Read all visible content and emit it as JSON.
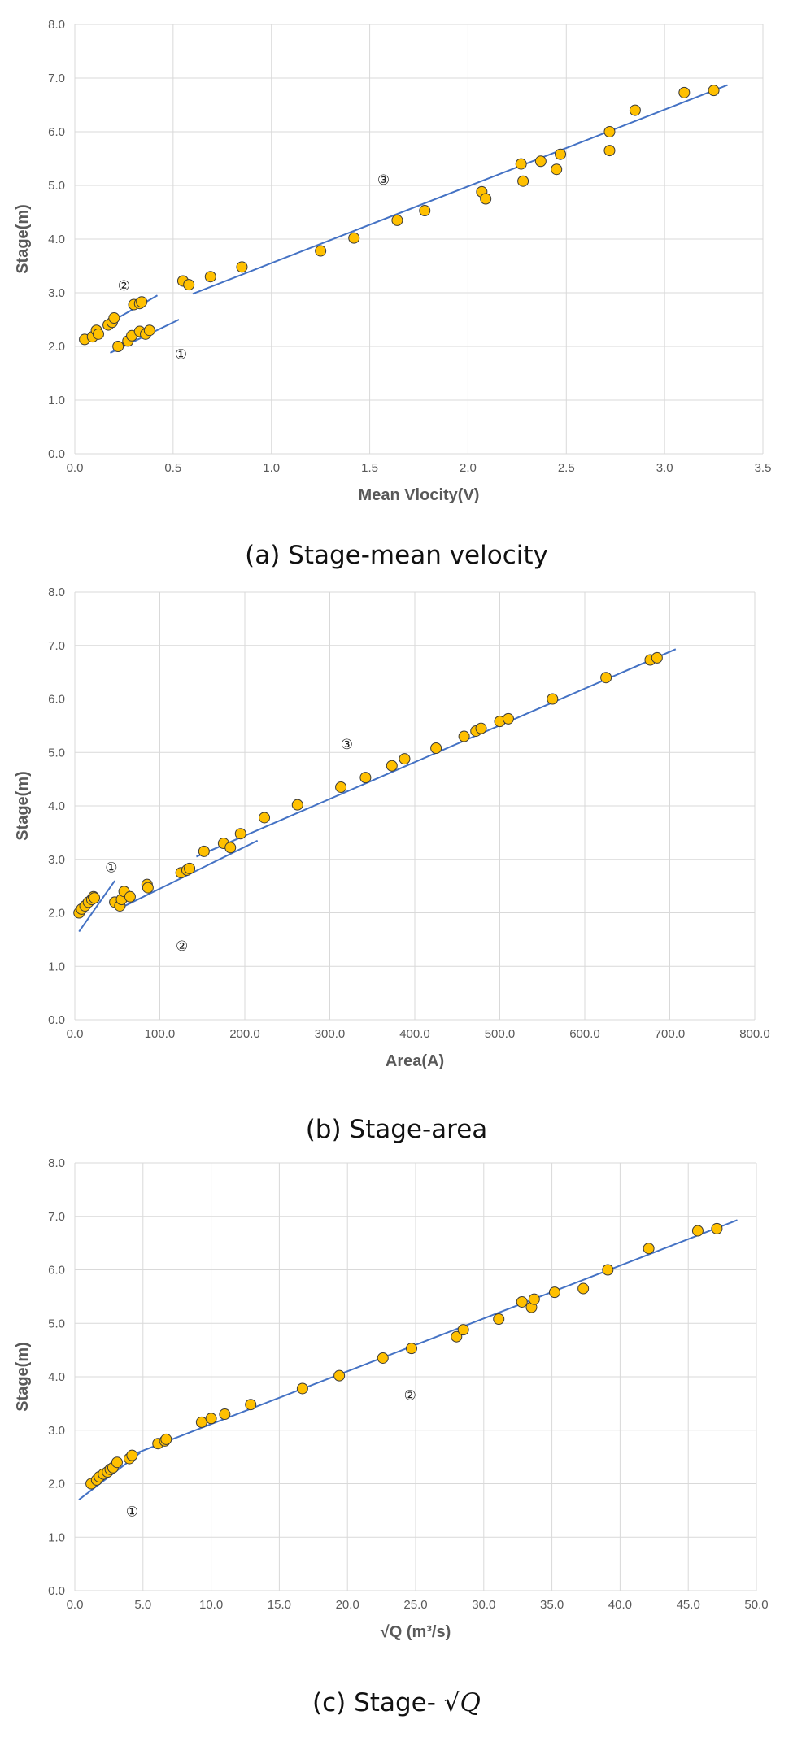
{
  "chart_data": [
    {
      "type": "scatter",
      "caption": "(a) Stage-mean velocity",
      "xlabel": "Mean Vlocity(V)",
      "ylabel": "Stage(m)",
      "xlim": [
        0,
        3.5
      ],
      "ylim": [
        0,
        8
      ],
      "xticks": [
        0,
        0.5,
        1.0,
        1.5,
        2.0,
        2.5,
        3.0,
        3.5
      ],
      "xtick_labels": [
        "0.0",
        "0.5",
        "1.0",
        "1.5",
        "2.0",
        "2.5",
        "3.0",
        "3.5"
      ],
      "yticks": [
        0,
        1,
        2,
        3,
        4,
        5,
        6,
        7,
        8
      ],
      "ytick_labels": [
        "0.0",
        "1.0",
        "2.0",
        "3.0",
        "4.0",
        "5.0",
        "6.0",
        "7.0",
        "8.0"
      ],
      "grid": true,
      "marker_color": "#FFC000",
      "line_color": "#4472C4",
      "points": [
        [
          0.05,
          2.13
        ],
        [
          0.09,
          2.18
        ],
        [
          0.11,
          2.3
        ],
        [
          0.12,
          2.23
        ],
        [
          0.17,
          2.4
        ],
        [
          0.19,
          2.45
        ],
        [
          0.2,
          2.53
        ],
        [
          0.22,
          2.0
        ],
        [
          0.27,
          2.1
        ],
        [
          0.29,
          2.2
        ],
        [
          0.3,
          2.78
        ],
        [
          0.33,
          2.28
        ],
        [
          0.33,
          2.8
        ],
        [
          0.34,
          2.83
        ],
        [
          0.36,
          2.23
        ],
        [
          0.38,
          2.3
        ],
        [
          0.55,
          3.22
        ],
        [
          0.58,
          3.15
        ],
        [
          0.69,
          3.3
        ],
        [
          0.85,
          3.48
        ],
        [
          1.25,
          3.78
        ],
        [
          1.42,
          4.02
        ],
        [
          1.64,
          4.35
        ],
        [
          1.78,
          4.53
        ],
        [
          2.07,
          4.88
        ],
        [
          2.09,
          4.75
        ],
        [
          2.27,
          5.4
        ],
        [
          2.28,
          5.08
        ],
        [
          2.37,
          5.45
        ],
        [
          2.45,
          5.3
        ],
        [
          2.47,
          5.58
        ],
        [
          2.72,
          6.0
        ],
        [
          2.72,
          5.65
        ],
        [
          2.85,
          6.4
        ],
        [
          3.1,
          6.73
        ],
        [
          3.25,
          6.77
        ]
      ],
      "fit_lines": [
        {
          "x": [
            0.18,
            0.53
          ],
          "y": [
            1.88,
            2.5
          ]
        },
        {
          "x": [
            0.18,
            0.42
          ],
          "y": [
            2.45,
            2.95
          ]
        },
        {
          "x": [
            0.6,
            3.32
          ],
          "y": [
            2.98,
            6.87
          ]
        }
      ],
      "annotations": [
        {
          "text": "①",
          "x": 0.54,
          "y": 1.87
        },
        {
          "text": "②",
          "x": 0.25,
          "y": 3.15
        },
        {
          "text": "③",
          "x": 1.57,
          "y": 5.12
        }
      ]
    },
    {
      "type": "scatter",
      "caption": "(b) Stage-area",
      "xlabel": "Area(A)",
      "ylabel": "Stage(m)",
      "xlim": [
        0,
        800
      ],
      "ylim": [
        0,
        8
      ],
      "xticks": [
        0,
        100,
        200,
        300,
        400,
        500,
        600,
        700,
        800
      ],
      "xtick_labels": [
        "0.0",
        "100.0",
        "200.0",
        "300.0",
        "400.0",
        "500.0",
        "600.0",
        "700.0",
        "800.0"
      ],
      "yticks": [
        0,
        1,
        2,
        3,
        4,
        5,
        6,
        7,
        8
      ],
      "ytick_labels": [
        "0.0",
        "1.0",
        "2.0",
        "3.0",
        "4.0",
        "5.0",
        "6.0",
        "7.0",
        "8.0"
      ],
      "grid": true,
      "marker_color": "#FFC000",
      "line_color": "#4472C4",
      "points": [
        [
          5,
          2.0
        ],
        [
          8,
          2.07
        ],
        [
          12,
          2.13
        ],
        [
          16,
          2.2
        ],
        [
          20,
          2.25
        ],
        [
          22,
          2.3
        ],
        [
          23,
          2.28
        ],
        [
          47,
          2.2
        ],
        [
          53,
          2.13
        ],
        [
          55,
          2.25
        ],
        [
          58,
          2.4
        ],
        [
          65,
          2.3
        ],
        [
          85,
          2.53
        ],
        [
          86,
          2.47
        ],
        [
          125,
          2.75
        ],
        [
          132,
          2.8
        ],
        [
          135,
          2.83
        ],
        [
          152,
          3.15
        ],
        [
          175,
          3.3
        ],
        [
          183,
          3.22
        ],
        [
          195,
          3.48
        ],
        [
          223,
          3.78
        ],
        [
          262,
          4.02
        ],
        [
          313,
          4.35
        ],
        [
          342,
          4.53
        ],
        [
          373,
          4.75
        ],
        [
          388,
          4.88
        ],
        [
          425,
          5.08
        ],
        [
          458,
          5.3
        ],
        [
          472,
          5.4
        ],
        [
          478,
          5.45
        ],
        [
          500,
          5.58
        ],
        [
          510,
          5.63
        ],
        [
          562,
          6.0
        ],
        [
          625,
          6.4
        ],
        [
          677,
          6.73
        ],
        [
          685,
          6.77
        ]
      ],
      "fit_lines": [
        {
          "x": [
            5,
            47
          ],
          "y": [
            1.65,
            2.6
          ]
        },
        {
          "x": [
            55,
            215
          ],
          "y": [
            2.1,
            3.35
          ]
        },
        {
          "x": [
            143,
            707
          ],
          "y": [
            3.05,
            6.93
          ]
        }
      ],
      "annotations": [
        {
          "text": "①",
          "x": 43,
          "y": 2.87
        },
        {
          "text": "②",
          "x": 126,
          "y": 1.4
        },
        {
          "text": "③",
          "x": 320,
          "y": 5.17
        }
      ]
    },
    {
      "type": "scatter",
      "caption_prefix": "(c) Stage- ",
      "caption_math": "√Q",
      "xlabel": "√Q (m³/s)",
      "ylabel": "Stage(m)",
      "xlim": [
        0,
        50
      ],
      "ylim": [
        0,
        8
      ],
      "xticks": [
        0,
        5,
        10,
        15,
        20,
        25,
        30,
        35,
        40,
        45,
        50
      ],
      "xtick_labels": [
        "0.0",
        "5.0",
        "10.0",
        "15.0",
        "20.0",
        "25.0",
        "30.0",
        "35.0",
        "40.0",
        "45.0",
        "50.0"
      ],
      "yticks": [
        0,
        1,
        2,
        3,
        4,
        5,
        6,
        7,
        8
      ],
      "ytick_labels": [
        "0.0",
        "1.0",
        "2.0",
        "3.0",
        "4.0",
        "5.0",
        "6.0",
        "7.0",
        "8.0"
      ],
      "grid": true,
      "marker_color": "#FFC000",
      "line_color": "#4472C4",
      "points": [
        [
          1.2,
          2.0
        ],
        [
          1.6,
          2.07
        ],
        [
          1.8,
          2.13
        ],
        [
          2.1,
          2.18
        ],
        [
          2.4,
          2.22
        ],
        [
          2.6,
          2.27
        ],
        [
          2.8,
          2.3
        ],
        [
          3.1,
          2.4
        ],
        [
          4.0,
          2.47
        ],
        [
          4.2,
          2.53
        ],
        [
          6.1,
          2.75
        ],
        [
          6.6,
          2.8
        ],
        [
          6.7,
          2.83
        ],
        [
          9.3,
          3.15
        ],
        [
          10.0,
          3.22
        ],
        [
          11.0,
          3.3
        ],
        [
          12.9,
          3.48
        ],
        [
          16.7,
          3.78
        ],
        [
          19.4,
          4.02
        ],
        [
          22.6,
          4.35
        ],
        [
          24.7,
          4.53
        ],
        [
          28.0,
          4.75
        ],
        [
          28.5,
          4.88
        ],
        [
          31.1,
          5.08
        ],
        [
          32.8,
          5.4
        ],
        [
          33.5,
          5.3
        ],
        [
          33.7,
          5.45
        ],
        [
          35.2,
          5.58
        ],
        [
          37.3,
          5.65
        ],
        [
          39.1,
          6.0
        ],
        [
          42.1,
          6.4
        ],
        [
          45.7,
          6.73
        ],
        [
          47.1,
          6.77
        ]
      ],
      "fit_lines": [
        {
          "x": [
            0.3,
            4.8
          ],
          "y": [
            1.7,
            2.58
          ]
        },
        {
          "x": [
            4.3,
            48.6
          ],
          "y": [
            2.55,
            6.93
          ]
        }
      ],
      "annotations": [
        {
          "text": "①",
          "x": 4.2,
          "y": 1.5
        },
        {
          "text": "②",
          "x": 24.6,
          "y": 3.67
        }
      ]
    }
  ]
}
